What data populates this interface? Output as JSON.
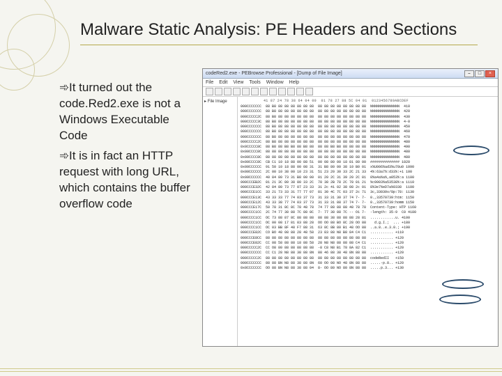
{
  "title": "Malware Static Analysis:  PE Headers and Sections",
  "bullets": [
    "It turned out the code.Red2.exe is not a Windows Executable Code",
    "It is in fact an HTTP request with long URL, which contains the buffer overflow code"
  ],
  "bullet_symbol": "➾",
  "screenshot": {
    "window_title": "codeRed2.exe - PEBrowse Professional - [Dump of File Image]",
    "menus": [
      "File",
      "Edit",
      "View",
      "Tools",
      "Window",
      "Help"
    ],
    "tree_root": "File Image",
    "hex_header": "          41 87 24 78 38 64 04 00  01 78 27 88 5C 04 01  0123456789ABCDEF",
    "hex_rows": [
      {
        "addr": "000CCCCCCC",
        "bytes": "88 B8 88 88 88 88 88 88  88 88 88 88 88 88 88 88",
        "asc": "NNNNNNNNNNNNNN  410"
      },
      {
        "addr": "000CCCCCCC",
        "bytes": "88 B8 88 88 88 88 88 88  88 88 88 88 88 88 88 88",
        "asc": "NNNNNNNNNNNNNN  420"
      },
      {
        "addr": "000CCCCC2C",
        "bytes": "88 B8 88 88 88 88 88 88  88 88 88 88 88 88 88 88",
        "asc": "NNNNNNNNNNNNNN  430"
      },
      {
        "addr": "000CCCCC3C",
        "bytes": "88 B8 88 88 88 88 88 88  88 88 88 88 88 88 88 88",
        "asc": "NNNNNNNNNNNNNN  4-0"
      },
      {
        "addr": "000CCCCCCC",
        "bytes": "88 B8 88 88 88 88 88 88  88 88 88 88 88 88 88 88",
        "asc": "NNNNNNNNNNNNNN  450"
      },
      {
        "addr": "000CCCCCCC",
        "bytes": "88 B8 88 88 88 88 88 88  88 88 88 88 88 88 88 88",
        "asc": "NNNNNNNNNNNNNN  460"
      },
      {
        "addr": "000CCCCCCC",
        "bytes": "88 B8 88 88 88 88 88 88  88 88 88 88 88 88 88 88",
        "asc": "NNNNNNNNNNNNNN  470"
      },
      {
        "addr": "000CCCCC2C",
        "bytes": "88 B8 88 88 88 88 88 88  88 88 88 88 88 88 88 88",
        "asc": "NNNNNNNNNNNNNN  480"
      },
      {
        "addr": "0x0CCCCC8C",
        "bytes": "88 B8 88 B8 B8 88 B8 88  88 88 B8 B8 88 88 88 88",
        "asc": "NNNNNNNNNNNNNN  490"
      },
      {
        "addr": "0x00CCCC8C",
        "bytes": "88 88 88 88 88 88 88 88  88 88 88 88 88 88 88 88",
        "asc": "NNNNNNNNNNNNNN  480"
      },
      {
        "addr": "0x00CCCC8C",
        "bytes": "88 88 88 88 88 88 88 88  88 88 88 88 88 88 88 88",
        "asc": "NNNNNNNNNNNNNN  480"
      },
      {
        "addr": "0x00CCCC8C",
        "bytes": "CB C1 10 18 88 00 88 51  00 08 80 00 18 81 80 00",
        "asc": "############## 1020"
      },
      {
        "addr": "0x00CCCCCC",
        "bytes": "91 50 10 18 88 00 08 31  31 B8 80 00 38 10 B0 01",
        "asc": "x%U006%ad3%u78u0 1090"
      },
      {
        "addr": "0x00CCCCCC",
        "bytes": "2C 00 10 38 00 10 23 31  51 23 20 30 33 2C 21 33",
        "asc": "4%:63a7%:d33%:+1 100"
      },
      {
        "addr": "0x00CCCCCC",
        "bytes": "40 84 80 73 31 B8 00 00  01 20 2C 31 39 20 2C 81",
        "asc": "0%a4a%a%,a053%:a 1100"
      },
      {
        "addr": "000CCCEB2C",
        "bytes": "81 21 3C 80 38 80 33 2C  78 38 2B 78 2C 78 81 21",
        "asc": "%c0003%a53538%:a 1110"
      },
      {
        "addr": "000CCCE32C",
        "bytes": "42 84 80 73 77 07 23 33  31 2c 41 02 38 08 2c 01",
        "asc": "8%3e7%eD7a%0338  1100"
      },
      {
        "addr": "000CCCE1CC",
        "bytes": "33 21 73 33 31 77 77 07  81 30 4C 7C 03 37 2c 71",
        "asc": "3c,33030v/8p:78: 1130"
      },
      {
        "addr": "000CCCE13C",
        "bytes": "43 33 33 77 74 03 37 73  31 33 31 30 37 74 7- 7-",
        "asc": "0.,33570739:htm: 1150"
      },
      {
        "addr": "000CCCE12C",
        "bytes": "43 33 38 77 74 03 37 73  31 33 31 88 37 74 7- 7-",
        "asc": "0.,33570739:homm 1150"
      },
      {
        "addr": "000CCCE17C",
        "bytes": "50 78 31 8C 8C 78 48 78  74 77 88 88 88 48 78 78",
        "asc": "Content-Type: HTP 1160"
      },
      {
        "addr": "000CCCC1CC",
        "bytes": "2C 74 77 38 88 7C 88 8C  7- 77 38 88 7C -- O1 7-",
        "asc": "-length: 35-9  C0 4180"
      },
      {
        "addr": "000CCCC1CC",
        "bytes": "OC 73 88 87 8C 88 88 88  88 88 38 88 88 88 28 81",
        "asc": "............u. 4100"
      },
      {
        "addr": "000CCCC1CC",
        "bytes": "OC 00 08 17 81 83 88 28  OO OO 88 BO 8C 28 OO 88",
        "asc": "  d.g.I.;  ... +180"
      },
      {
        "addr": "000CCCC1CC",
        "bytes": "OC 03 BB 8F 48 F7 88 31  63 8C 8B 80 B1 48 OO 88",
        "asc": "..a.8..e.3.0.; +190"
      },
      {
        "addr": "000CCCE82C",
        "bytes": "CO BO 48 08 88 28 48 58  23 83 88 N8 B8 84 C4 C1",
        "asc": "........... +110"
      },
      {
        "addr": "000CCCE8CC",
        "bytes": "88 88 88 88 88 88 88 88  88 88 88 88 88 88 88 88",
        "asc": "........... +120"
      },
      {
        "addr": "000CCCE82C",
        "bytes": "CC 08 58 88 88 18 88 58  28 N8 N8 88 88 88 C4 C1",
        "asc": "........... +120"
      },
      {
        "addr": "000CCCCC2C",
        "bytes": "CC O8 80 88 88 88 88 88  -8 C8 N8 B1 78 8A 82 C1",
        "asc": "........... +120"
      },
      {
        "addr": "000CCCCCCC",
        "bytes": "CC C1 28 N8 88 38 88 8N  88 46 88 38 48 8N 88 88",
        "asc": "........... +120"
      },
      {
        "addr": "000CCCCC2C",
        "bytes": "88 88 88 88 88 88 88 88  88 88 88 88 88 88 88 88",
        "asc": "codeRedII   +150"
      },
      {
        "addr": "000CCCCCCC",
        "bytes": "88 88 BN N8 88 38 88 8N  60 OO 08 NO 48 8N 88 88",
        "asc": ".....-p.8.. +120"
      },
      {
        "addr": "0x0CCCCCCC",
        "bytes": "OO 88 BN N8 88 38 88 04  8- OO 80 NO 80 8N 88 88",
        "asc": ".....p.3... +130"
      }
    ],
    "colors": {
      "window_bg": "#ffffff",
      "titlebar_grad_top": "#eaf0fb",
      "titlebar_grad_bot": "#cddcf3",
      "close_btn": "#e06050",
      "annotation_circle": "#2a4a6a"
    }
  }
}
